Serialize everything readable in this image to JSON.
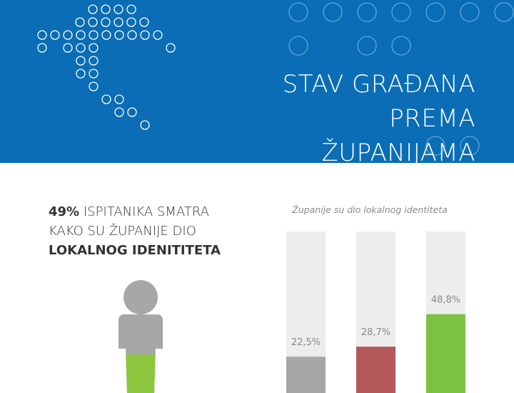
{
  "banner": {
    "title_line1": "STAV GRAĐANA PREMA",
    "title_line2": "ŽUPANIJAMA",
    "background_color": "#0a6db5",
    "decoration": "croatia-map-dots-icon"
  },
  "headline": {
    "percent": "49%",
    "text_part1": "ISPITANIKA SMATRA",
    "text_part2": "KAKO SU ŽUPANIJE DIO",
    "text_bold": "LOKALNOG IDENITITETA"
  },
  "person_icon": {
    "name": "person-icon",
    "fill_color": "#8cc63f",
    "base_color": "#a7a7a7",
    "value": 49
  },
  "chart_data": {
    "type": "bar",
    "title": "Županije su dio lokalnog identiteta",
    "xlabel": "",
    "ylabel": "",
    "ylim": [
      0,
      100
    ],
    "categories": [
      "",
      "",
      ""
    ],
    "values": [
      22.5,
      28.7,
      48.8
    ],
    "value_labels": [
      "22,5%",
      "28,7%",
      "48,8%"
    ],
    "colors": [
      "#a7a7a7",
      "#b5585b",
      "#7dc142"
    ],
    "background_color": "#ededed",
    "grid": false
  }
}
